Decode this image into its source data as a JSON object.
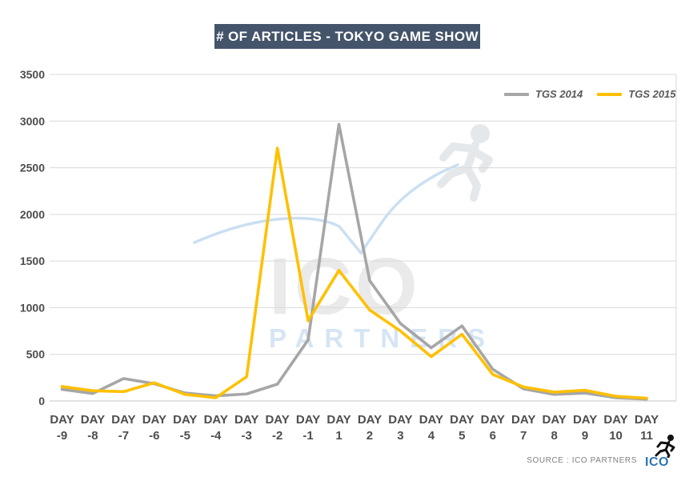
{
  "header": {
    "title": "# OF ARTICLES - TOKYO GAME SHOW"
  },
  "legend": {
    "items": [
      {
        "label": "TGS 2014",
        "color": "#A6A6A6"
      },
      {
        "label": "TGS 2015",
        "color": "#FFC000"
      }
    ]
  },
  "chart_data": {
    "type": "line",
    "title": "# OF ARTICLES - TOKYO GAME SHOW",
    "categories": [
      "DAY -9",
      "DAY -8",
      "DAY -7",
      "DAY -6",
      "DAY -5",
      "DAY -4",
      "DAY -3",
      "DAY -2",
      "DAY -1",
      "DAY 1",
      "DAY 2",
      "DAY 3",
      "DAY 4",
      "DAY 5",
      "DAY 6",
      "DAY 7",
      "DAY 8",
      "DAY 9",
      "DAY 10",
      "DAY 11"
    ],
    "series": [
      {
        "name": "TGS 2014",
        "color": "#A6A6A6",
        "values": [
          125,
          80,
          240,
          185,
          85,
          55,
          75,
          180,
          655,
          2965,
          1290,
          830,
          570,
          805,
          340,
          130,
          70,
          85,
          35,
          20
        ]
      },
      {
        "name": "TGS 2015",
        "color": "#FFC000",
        "values": [
          155,
          110,
          100,
          195,
          70,
          35,
          260,
          2710,
          860,
          1400,
          975,
          750,
          475,
          715,
          285,
          150,
          95,
          115,
          50,
          30
        ]
      }
    ],
    "xlabel": "",
    "ylabel": "",
    "ylim": [
      0,
      3500
    ],
    "y_ticks": [
      0,
      500,
      1000,
      1500,
      2000,
      2500,
      3000,
      3500
    ],
    "grid": "horizontal",
    "legend_position": "top-right"
  },
  "watermark": {
    "line1": "ICO",
    "line2": "PARTNERS"
  },
  "footer": {
    "source_label": "SOURCE : ICO PARTNERS",
    "logo_text": "ICO",
    "logo_color": "#2E75B6"
  },
  "colors": {
    "title_background": "#44546A",
    "axis_text": "#4D4D4D",
    "gridline": "#D9D9D9",
    "axis_line": "#C6C6C6",
    "series_2014": "#A6A6A6",
    "series_2015": "#FFC000",
    "watermark_gray": "#EAEAEA",
    "watermark_blue": "#D6E5F4"
  }
}
